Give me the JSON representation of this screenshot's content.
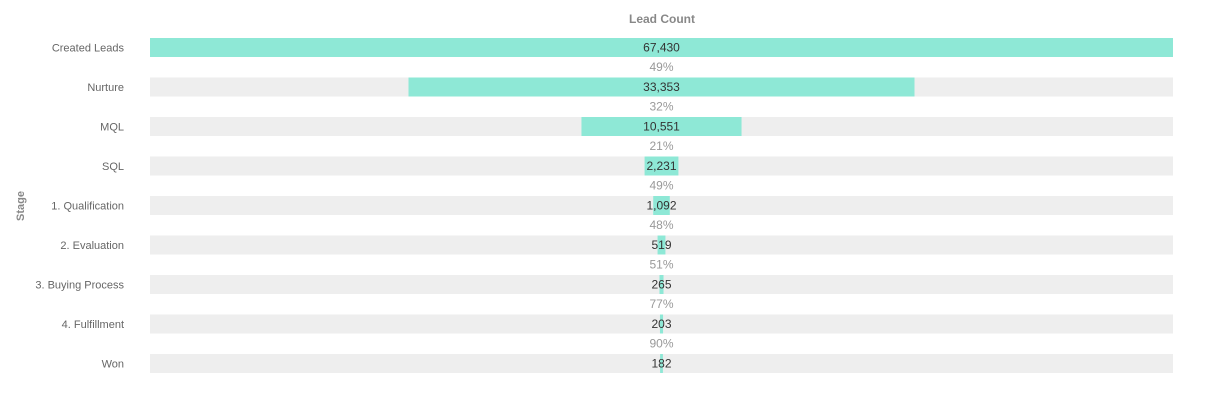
{
  "chart_data": {
    "type": "bar",
    "title": "Lead Count",
    "xlabel": "",
    "ylabel": "Stage",
    "orientation": "horizontal-funnel",
    "categories": [
      "Created Leads",
      "Nurture",
      "MQL",
      "SQL",
      "1. Qualification",
      "2. Evaluation",
      "3. Buying Process",
      "4. Fulfillment",
      "Won"
    ],
    "values": [
      67430,
      33353,
      10551,
      2231,
      1092,
      519,
      265,
      203,
      182
    ],
    "value_labels": [
      "67,430",
      "33,353",
      "10,551",
      "2,231",
      "1,092",
      "519",
      "265",
      "203",
      "182"
    ],
    "conversion_labels": [
      "49%",
      "32%",
      "21%",
      "49%",
      "48%",
      "51%",
      "77%",
      "90%"
    ],
    "xlim": [
      0,
      67430
    ],
    "grid": false,
    "legend": "none",
    "colors": {
      "bar": "#8ee8d6",
      "track": "#eeeeee"
    }
  }
}
